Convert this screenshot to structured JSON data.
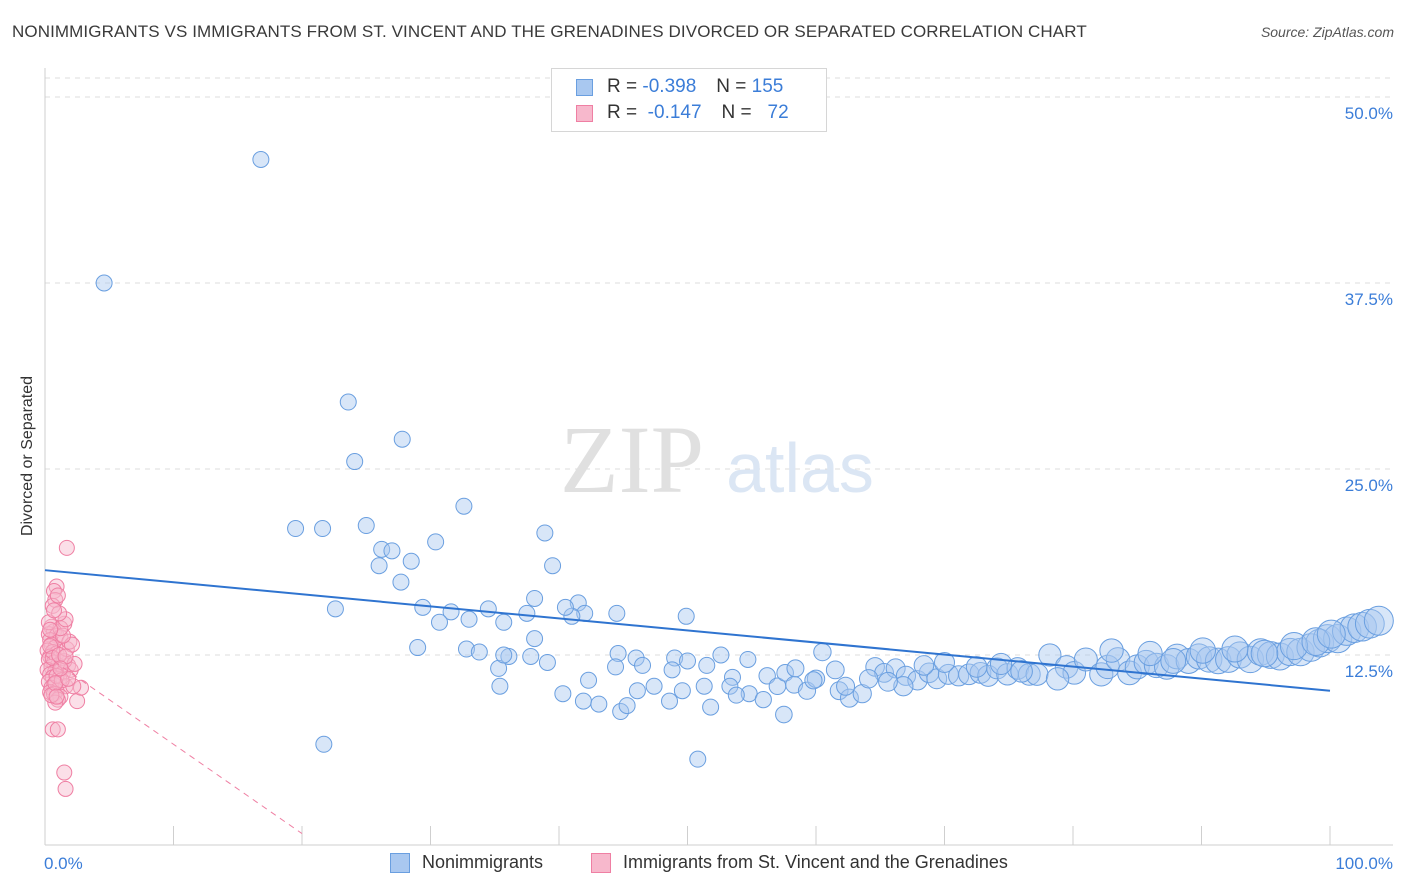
{
  "header": {
    "title": "NONIMMIGRANTS VS IMMIGRANTS FROM ST. VINCENT AND THE GRENADINES DIVORCED OR SEPARATED CORRELATION CHART",
    "source": "Source: ZipAtlas.com"
  },
  "watermark": {
    "zip": "ZIP",
    "atlas": "atlas"
  },
  "legend": {
    "rows": [
      {
        "r_label": "R =",
        "r_value": "-0.398",
        "n_label": "N =",
        "n_value": "155",
        "color": "#a9c8f0",
        "border": "#6a9fe0"
      },
      {
        "r_label": "R =",
        "r_value": "-0.147",
        "n_label": "N =",
        "n_value": "72",
        "color": "#f7b8cc",
        "border": "#ef7fa3"
      }
    ]
  },
  "bottom_legend": {
    "series1": "Nonimmigrants",
    "series2": "Immigrants from St. Vincent and the Grenadines"
  },
  "colors": {
    "blue": "#3b7dd8",
    "blue_fill": "#a9c8f0",
    "pink": "#ef6f98",
    "pink_fill": "#f7b8cc"
  },
  "chart_data": {
    "type": "scatter",
    "title": "NONIMMIGRANTS VS IMMIGRANTS FROM ST. VINCENT AND THE GRENADINES DIVORCED OR SEPARATED CORRELATION CHART",
    "xlabel": "",
    "ylabel": "Divorced or Separated",
    "xlim": [
      0,
      100
    ],
    "ylim": [
      0,
      50
    ],
    "x_tick_labels": [
      "0.0%",
      "100.0%"
    ],
    "y_tick_labels": [
      "12.5%",
      "25.0%",
      "37.5%",
      "50.0%"
    ],
    "y_ticks": [
      12.5,
      25.0,
      37.5,
      50.0
    ],
    "grid": true,
    "legend_placement": "top-center",
    "series": [
      {
        "name": "Nonimmigrants",
        "trend": {
          "x": [
            0,
            100
          ],
          "y": [
            18.2,
            10.1
          ],
          "style": "solid"
        },
        "points": [
          [
            4.6,
            37.5
          ],
          [
            16.8,
            45.8
          ],
          [
            23.6,
            29.5
          ],
          [
            27.8,
            27
          ],
          [
            24.1,
            25.5
          ],
          [
            32.6,
            22.5
          ],
          [
            19.5,
            21
          ],
          [
            21.6,
            21
          ],
          [
            25,
            21.2
          ],
          [
            30.4,
            20.1
          ],
          [
            26.2,
            19.6
          ],
          [
            27,
            19.5
          ],
          [
            26,
            18.5
          ],
          [
            28.5,
            18.8
          ],
          [
            27.7,
            17.4
          ],
          [
            38.9,
            20.7
          ],
          [
            39.5,
            18.5
          ],
          [
            38.1,
            16.3
          ],
          [
            37.5,
            15.3
          ],
          [
            41.5,
            16
          ],
          [
            22.6,
            15.6
          ],
          [
            29.4,
            15.7
          ],
          [
            31.6,
            15.4
          ],
          [
            34.5,
            15.6
          ],
          [
            30.7,
            14.7
          ],
          [
            35.7,
            14.7
          ],
          [
            42,
            15.3
          ],
          [
            44.5,
            15.3
          ],
          [
            41,
            15.1
          ],
          [
            49.9,
            15.1
          ],
          [
            33,
            14.9
          ],
          [
            38.1,
            13.6
          ],
          [
            29,
            13
          ],
          [
            32.8,
            12.9
          ],
          [
            33.8,
            12.7
          ],
          [
            36.1,
            12.4
          ],
          [
            37.8,
            12.4
          ],
          [
            39.1,
            12
          ],
          [
            44.6,
            12.6
          ],
          [
            46,
            12.3
          ],
          [
            49,
            12.3
          ],
          [
            50,
            12.1
          ],
          [
            35.3,
            11.6
          ],
          [
            35.4,
            10.4
          ],
          [
            42.3,
            10.8
          ],
          [
            44.4,
            11.7
          ],
          [
            46.5,
            11.8
          ],
          [
            47.4,
            10.4
          ],
          [
            51.5,
            11.8
          ],
          [
            53.5,
            11
          ],
          [
            41.9,
            9.4
          ],
          [
            43.1,
            9.2
          ],
          [
            44.8,
            8.7
          ],
          [
            46.1,
            10.1
          ],
          [
            48.6,
            9.4
          ],
          [
            49.6,
            10.1
          ],
          [
            51.3,
            10.4
          ],
          [
            51.8,
            9
          ],
          [
            53.3,
            10.4
          ],
          [
            54.8,
            9.9
          ],
          [
            56.2,
            11.1
          ],
          [
            57,
            10.4
          ],
          [
            57.6,
            11.3
          ],
          [
            58.3,
            10.5
          ],
          [
            59.3,
            10.1
          ],
          [
            60,
            10.9
          ],
          [
            61.5,
            11.5
          ],
          [
            61.8,
            10.1
          ],
          [
            62.6,
            9.6
          ],
          [
            63.6,
            9.9
          ],
          [
            64.6,
            11.7
          ],
          [
            65.3,
            11.3
          ],
          [
            66.2,
            11.6
          ],
          [
            67,
            11.1
          ],
          [
            67.9,
            10.8
          ],
          [
            68.8,
            11.3
          ],
          [
            69.4,
            10.9
          ],
          [
            70.3,
            11.2
          ],
          [
            71.1,
            11.1
          ],
          [
            71.9,
            11.2
          ],
          [
            72.8,
            11.3
          ],
          [
            73.4,
            11.1
          ],
          [
            74.1,
            11.6
          ],
          [
            74.9,
            11.2
          ],
          [
            75.7,
            11.6
          ],
          [
            76.6,
            11.2
          ],
          [
            77.2,
            11.2
          ],
          [
            78.2,
            12.5
          ],
          [
            79.5,
            11.7
          ],
          [
            80.1,
            11.3
          ],
          [
            81,
            12.2
          ],
          [
            82.2,
            11.2
          ],
          [
            82.7,
            11.7
          ],
          [
            83.5,
            12.2
          ],
          [
            84.4,
            11.3
          ],
          [
            85,
            11.7
          ],
          [
            85.7,
            12
          ],
          [
            86.5,
            11.8
          ],
          [
            87.3,
            11.7
          ],
          [
            88.1,
            12.4
          ],
          [
            89,
            12.1
          ],
          [
            89.8,
            12.4
          ],
          [
            90.6,
            12.2
          ],
          [
            91.3,
            12.1
          ],
          [
            92.1,
            12.2
          ],
          [
            93,
            12.5
          ],
          [
            93.8,
            12.2
          ],
          [
            94.6,
            12.7
          ],
          [
            95.4,
            12.5
          ],
          [
            96.1,
            12.4
          ],
          [
            96.9,
            12.7
          ],
          [
            97.7,
            12.7
          ],
          [
            98.5,
            13
          ],
          [
            99.2,
            13.3
          ],
          [
            99.8,
            13.6
          ],
          [
            100.6,
            13.6
          ],
          [
            101.3,
            14.1
          ],
          [
            101.9,
            14.3
          ],
          [
            102.5,
            14.4
          ],
          [
            103.1,
            14.6
          ],
          [
            103.8,
            14.8
          ],
          [
            57.5,
            8.5
          ],
          [
            53.8,
            9.8
          ],
          [
            55.9,
            9.5
          ],
          [
            48.8,
            11.5
          ],
          [
            52.6,
            12.5
          ],
          [
            40.3,
            9.9
          ],
          [
            40.5,
            15.7
          ],
          [
            21.7,
            6.5
          ],
          [
            50.8,
            5.5
          ],
          [
            35.7,
            12.5
          ],
          [
            45.3,
            9.1
          ],
          [
            54.7,
            12.2
          ],
          [
            60.5,
            12.7
          ],
          [
            66.8,
            10.4
          ],
          [
            70,
            12
          ],
          [
            76,
            11.4
          ],
          [
            78.8,
            10.9
          ],
          [
            83,
            12.8
          ],
          [
            86,
            12.6
          ],
          [
            87.8,
            12.1
          ],
          [
            90.1,
            12.8
          ],
          [
            92.6,
            12.9
          ],
          [
            94.9,
            12.6
          ],
          [
            97.2,
            13.1
          ],
          [
            98.9,
            13.4
          ],
          [
            100.1,
            13.9
          ],
          [
            58.4,
            11.6
          ],
          [
            59.8,
            10.8
          ],
          [
            62.3,
            10.4
          ],
          [
            64.1,
            10.9
          ],
          [
            65.6,
            10.7
          ],
          [
            68.4,
            11.8
          ],
          [
            72.5,
            11.7
          ],
          [
            74.4,
            11.9
          ]
        ]
      },
      {
        "name": "Immigrants from St. Vincent and the Grenadines",
        "trend": {
          "x": [
            0,
            20
          ],
          "y": [
            12.5,
            0.5
          ],
          "style": "dashed"
        },
        "points": [
          [
            1.7,
            19.7
          ],
          [
            0.9,
            17.1
          ],
          [
            0.7,
            16.8
          ],
          [
            0.8,
            16.2
          ],
          [
            0.6,
            15.8
          ],
          [
            1.5,
            14.6
          ],
          [
            0.5,
            14.4
          ],
          [
            0.7,
            14.1
          ],
          [
            0.3,
            13.9
          ],
          [
            0.9,
            13.8
          ],
          [
            1.2,
            13.7
          ],
          [
            0.4,
            13.5
          ],
          [
            0.5,
            13.2
          ],
          [
            0.8,
            13
          ],
          [
            0.2,
            12.8
          ],
          [
            0.6,
            12.7
          ],
          [
            0.9,
            12.6
          ],
          [
            0.4,
            12.4
          ],
          [
            0.3,
            12.2
          ],
          [
            0.7,
            12
          ],
          [
            1.3,
            12
          ],
          [
            1.0,
            11.8
          ],
          [
            0.5,
            11.7
          ],
          [
            0.2,
            11.5
          ],
          [
            0.8,
            11.4
          ],
          [
            1.4,
            11.3
          ],
          [
            0.4,
            11.2
          ],
          [
            0.6,
            11
          ],
          [
            1.1,
            10.9
          ],
          [
            0.3,
            10.7
          ],
          [
            0.7,
            10.5
          ],
          [
            1.6,
            10.4
          ],
          [
            0.5,
            10.3
          ],
          [
            0.9,
            10.1
          ],
          [
            0.4,
            10
          ],
          [
            0.7,
            9.9
          ],
          [
            1.2,
            9.7
          ],
          [
            1.0,
            9.5
          ],
          [
            0.8,
            9.3
          ],
          [
            2.5,
            9.4
          ],
          [
            0.6,
            7.5
          ],
          [
            1.0,
            7.5
          ],
          [
            1.5,
            4.6
          ],
          [
            1.6,
            3.5
          ],
          [
            2.8,
            10.3
          ],
          [
            2.2,
            10.4
          ],
          [
            1.8,
            11.8
          ],
          [
            2.0,
            11.5
          ],
          [
            1.5,
            12.1
          ],
          [
            1.7,
            12.9
          ],
          [
            1.9,
            13.4
          ],
          [
            2.1,
            13.2
          ],
          [
            1.4,
            13.8
          ],
          [
            1.2,
            14.3
          ],
          [
            1.6,
            14.9
          ],
          [
            1.1,
            15.3
          ],
          [
            0.4,
            13.1
          ],
          [
            0.6,
            12.3
          ],
          [
            0.9,
            11.1
          ],
          [
            1.3,
            10.8
          ],
          [
            0.5,
            9.8
          ],
          [
            0.8,
            10.6
          ],
          [
            1.1,
            12.5
          ],
          [
            0.3,
            14.7
          ],
          [
            1.8,
            10.9
          ],
          [
            2.3,
            11.9
          ],
          [
            0.7,
            15.5
          ],
          [
            1.0,
            16.5
          ],
          [
            0.4,
            14.2
          ],
          [
            1.6,
            12.4
          ],
          [
            0.9,
            9.7
          ],
          [
            1.2,
            11.6
          ]
        ]
      }
    ]
  }
}
